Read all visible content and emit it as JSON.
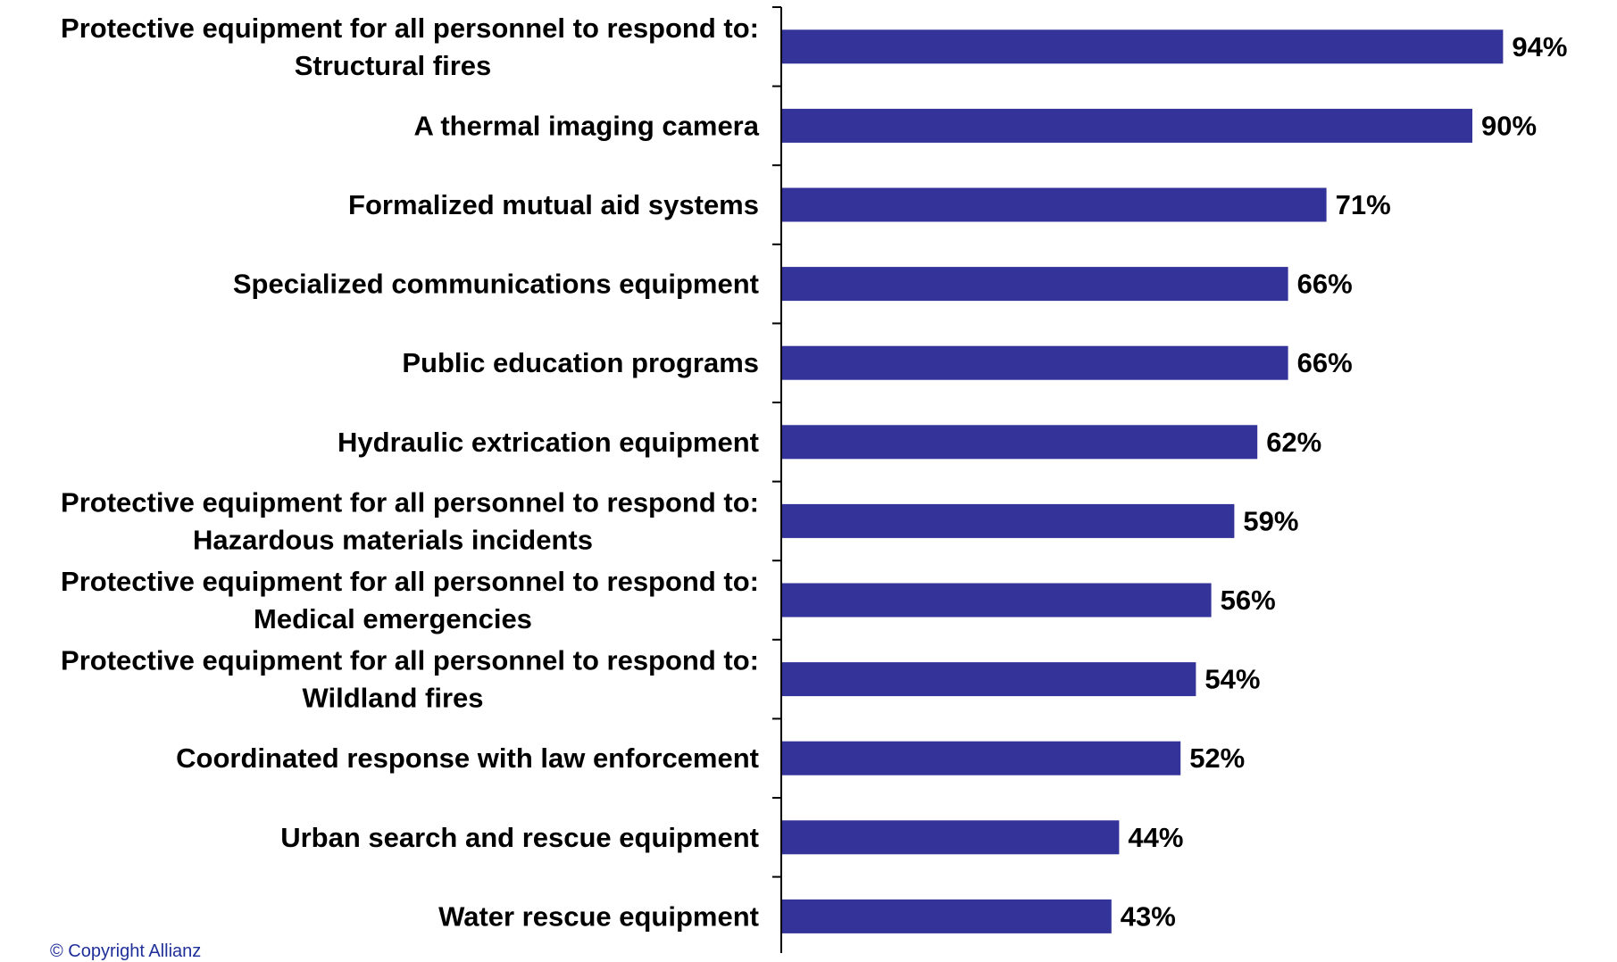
{
  "chart_data": {
    "type": "bar",
    "orientation": "horizontal",
    "categories": [
      [
        "Protective equipment for all personnel to respond to:",
        "Structural fires"
      ],
      [
        "A thermal imaging camera"
      ],
      [
        "Formalized mutual aid systems"
      ],
      [
        "Specialized communications equipment"
      ],
      [
        "Public education programs"
      ],
      [
        "Hydraulic extrication equipment"
      ],
      [
        "Protective equipment for all personnel to respond to:",
        "Hazardous materials incidents"
      ],
      [
        "Protective equipment for all personnel to respond to:",
        "Medical emergencies"
      ],
      [
        "Protective equipment for all personnel to respond to:",
        "Wildland fires"
      ],
      [
        "Coordinated response with law enforcement"
      ],
      [
        "Urban search and rescue equipment"
      ],
      [
        "Water rescue equipment"
      ]
    ],
    "values": [
      94,
      90,
      71,
      66,
      66,
      62,
      59,
      56,
      54,
      52,
      44,
      43
    ],
    "value_labels": [
      "94%",
      "90%",
      "71%",
      "66%",
      "66%",
      "62%",
      "59%",
      "56%",
      "54%",
      "52%",
      "44%",
      "43%"
    ],
    "xlim": [
      0,
      100
    ],
    "bar_color": "#333399",
    "grid": false,
    "legend": "none"
  },
  "footer": {
    "copyright": "© Copyright Allianz"
  }
}
